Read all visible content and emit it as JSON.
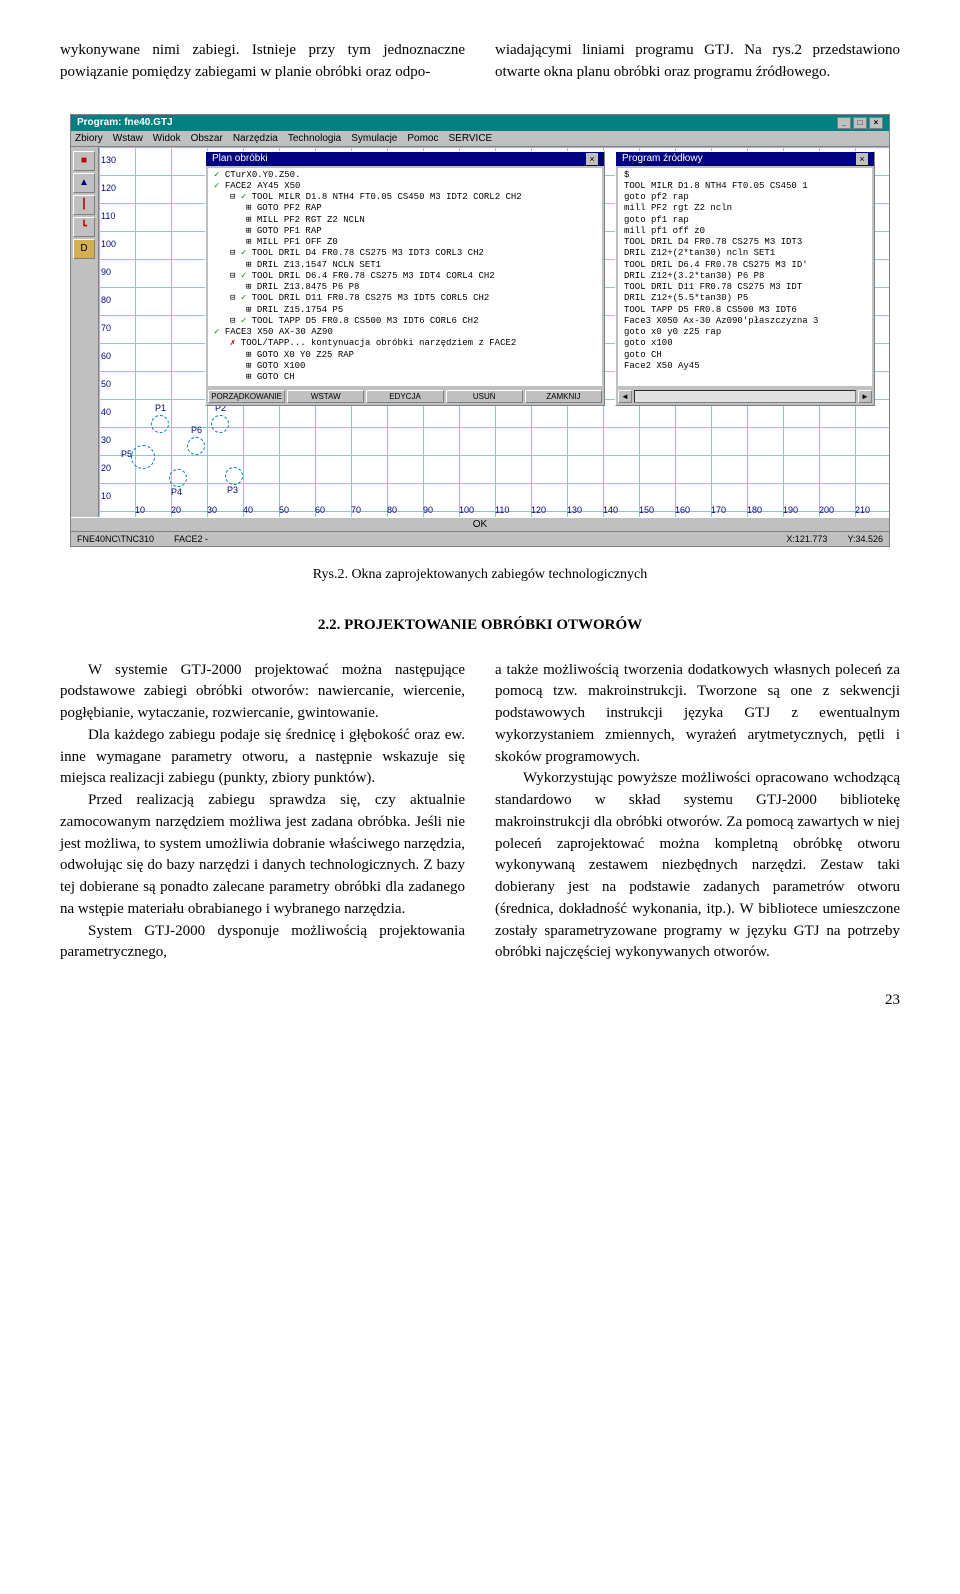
{
  "intro": {
    "left": "wykonywane nimi zabiegi. Istnieje przy tym jednoznaczne powiązanie pomiędzy zabiegami w planie obróbki oraz odpo-",
    "right": "wiadającymi liniami programu GTJ. Na rys.2 przedstawiono otwarte okna planu obróbki oraz programu źródłowego."
  },
  "app": {
    "title": "Program: fne40.GTJ",
    "menus": [
      "Zbiory",
      "Wstaw",
      "Widok",
      "Obszar",
      "Narzędzia",
      "Technologia",
      "Symulacje",
      "Pomoc",
      "SERVICE"
    ],
    "y_ticks": [
      "130",
      "120",
      "110",
      "100",
      "90",
      "80",
      "70",
      "60",
      "50",
      "40",
      "30",
      "20",
      "10"
    ],
    "x_ticks": [
      "10",
      "20",
      "30",
      "40",
      "50",
      "60",
      "70",
      "80",
      "90",
      "100",
      "110",
      "120",
      "130",
      "140",
      "150",
      "160",
      "170",
      "180",
      "190",
      "200",
      "210"
    ],
    "plan_panel": {
      "title": "Plan obróbki",
      "items": [
        {
          "mark": "✓",
          "indent": 0,
          "text": "CTurX0.Y0.Z50."
        },
        {
          "mark": "✓",
          "indent": 0,
          "text": "FACE2 AY45 X50"
        },
        {
          "mark": "✓",
          "indent": 1,
          "text": "TOOL MILR D1.8 NTH4 FT0.05 CS450 M3 IDT2 CORL2 CH2",
          "pre": "⊟"
        },
        {
          "mark": "",
          "indent": 2,
          "text": "GOTO PF2 RAP",
          "pre": "⊞"
        },
        {
          "mark": "",
          "indent": 2,
          "text": "MILL PF2 RGT Z2 NCLN",
          "pre": "⊞"
        },
        {
          "mark": "",
          "indent": 2,
          "text": "GOTO PF1 RAP",
          "pre": "⊞"
        },
        {
          "mark": "",
          "indent": 2,
          "text": "MILL PF1 OFF Z0",
          "pre": "⊞"
        },
        {
          "mark": "✓",
          "indent": 1,
          "text": "TOOL DRIL D4 FR0.78 CS275 M3 IDT3 CORL3 CH2",
          "pre": "⊟"
        },
        {
          "mark": "",
          "indent": 2,
          "text": "DRIL Z13.1547 NCLN SET1",
          "pre": "⊞"
        },
        {
          "mark": "✓",
          "indent": 1,
          "text": "TOOL DRIL D6.4 FR0.78 CS275 M3 IDT4 CORL4 CH2",
          "pre": "⊟"
        },
        {
          "mark": "",
          "indent": 2,
          "text": "DRIL Z13.8475 P6 P8",
          "pre": "⊞"
        },
        {
          "mark": "✓",
          "indent": 1,
          "text": "TOOL DRIL D11 FR0.78 CS275 M3 IDT5 CORL5 CH2",
          "pre": "⊟"
        },
        {
          "mark": "",
          "indent": 2,
          "text": "DRIL Z15.1754 P5",
          "pre": "⊞"
        },
        {
          "mark": "✓",
          "indent": 1,
          "text": "TOOL TAPP D5 FR0.8 CS500 M3 IDT6 CORL6 CH2",
          "pre": "⊟"
        },
        {
          "mark": "✓",
          "indent": 0,
          "text": "FACE3 X50 AX-30 AZ90"
        },
        {
          "mark": "✗",
          "indent": 1,
          "text": "TOOL/TAPP... kontynuacja obróbki narzędziem z FACE2",
          "pre": ""
        },
        {
          "mark": "",
          "indent": 2,
          "text": "GOTO X0 Y0 Z25 RAP",
          "pre": "⊞"
        },
        {
          "mark": "",
          "indent": 2,
          "text": "GOTO X100",
          "pre": "⊞"
        },
        {
          "mark": "",
          "indent": 2,
          "text": "GOTO CH",
          "pre": "⊞"
        }
      ],
      "buttons": [
        "PORZĄDKOWANIE",
        "WSTAW",
        "EDYCJA",
        "USUŃ",
        "ZAMKNIJ"
      ]
    },
    "src_panel": {
      "title": "Program źródłowy",
      "lines": [
        "$",
        "TOOL MILR D1.8 NTH4 FT0.05 CS450 1",
        "goto pf2 rap",
        "mill PF2 rgt Z2 ncln",
        "goto pf1 rap",
        "mill pf1 off z0",
        "TOOL DRIL D4 FR0.78 CS275 M3 IDT3",
        "DRIL Z12+(2*tan30) ncln SET1",
        "TOOL DRIL D6.4 FR0.78 CS275 M3 ID'",
        "DRIL Z12+(3.2*tan30) P6 P8",
        "TOOL DRIL D11 FR0.78 CS275 M3 IDT",
        "DRIL Z12+(5.5*tan30) P5",
        "TOOL TAPP D5 FR0.8 CS500 M3 IDT6",
        "Face3 X050 Ax-30 Az090'płaszczyzna 3",
        "goto x0 y0 z25 rap",
        "goto x100",
        "goto CH",
        "Face2 X50 Ay45"
      ]
    },
    "geom_points": [
      "P1",
      "P2",
      "P5",
      "P6",
      "P4",
      "P3"
    ],
    "ok": "OK",
    "status": {
      "file": "FNE40NC\\TNC310",
      "face": "FACE2 -",
      "x": "X:121.773",
      "y": "Y:34.526"
    }
  },
  "caption": "Rys.2. Okna zaprojektowanych zabiegów technologicznych",
  "section": "2.2. PROJEKTOWANIE OBRÓBKI OTWORÓW",
  "body": {
    "left": [
      "W systemie GTJ-2000 projektować można następujące podstawowe zabiegi obróbki otworów: nawiercanie, wiercenie, pogłębianie, wytaczanie, rozwiercanie, gwintowanie.",
      "Dla każdego zabiegu podaje się średnicę i głębokość oraz ew. inne wymagane parametry otworu, a następnie wskazuje się miejsca realizacji zabiegu (punkty, zbiory punktów).",
      "Przed realizacją zabiegu sprawdza się, czy aktualnie zamocowanym narzędziem możliwa jest zadana obróbka. Jeśli nie jest możliwa, to system umożliwia dobranie właściwego narzędzia, odwołując się do bazy narzędzi i danych technologicznych. Z bazy tej dobierane są ponadto zalecane parametry obróbki dla zadanego na wstępie materiału obrabianego i wybranego narzędzia.",
      "System GTJ-2000 dysponuje możliwością projektowania parametrycznego,"
    ],
    "right": [
      "a także możliwością tworzenia dodatkowych własnych poleceń za pomocą tzw. makroinstrukcji. Tworzone są one z sekwencji podstawowych instrukcji języka GTJ z ewentualnym wykorzystaniem zmiennych, wyrażeń arytmetycznych, pętli i skoków programowych.",
      "Wykorzystując powyższe możliwości opracowano wchodzącą standardowo w skład systemu GTJ-2000 bibliotekę makroinstrukcji dla obróbki otworów. Za pomocą zawartych w niej poleceń zaprojektować można kompletną obróbkę otworu wykonywaną zestawem niezbędnych narzędzi. Zestaw taki dobierany jest na podstawie zadanych parametrów otworu (średnica, dokładność wykonania, itp.). W bibliotece umieszczone zostały sparametryzowane programy w języku GTJ na potrzeby obróbki najczęściej wykonywanych otworów."
    ]
  },
  "pagenum": "23",
  "style": {
    "grid_color": "#80d0d0",
    "panel_title_bg": "#000080",
    "titlebar_bg": "#008080"
  }
}
